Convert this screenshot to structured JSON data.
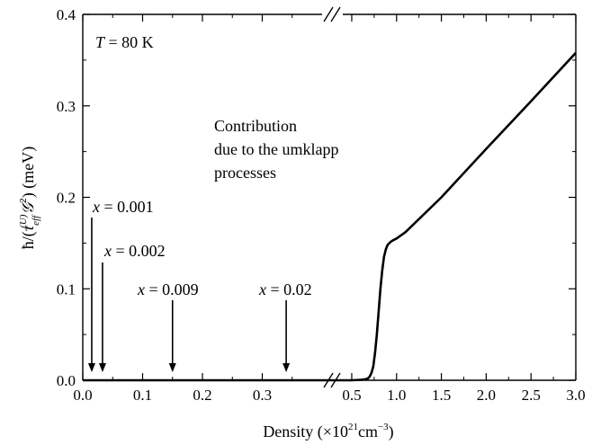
{
  "chart_data": {
    "type": "line",
    "xlabel": "Density (×10",
    "xlabel_exp": "21",
    "xlabel_unit": "cm",
    "xlabel_unit_exp": "−3",
    "xlabel_close": ")",
    "ylabel_prefix": "ħ/(",
    "ylabel_tau": "τ",
    "ylabel_tau_sub": "eff",
    "ylabel_tau_sup": "(U)",
    "ylabel_G": "𝒢",
    "ylabel_G_sup": "2",
    "ylabel_suffix": ") (meV)",
    "ylim": [
      0,
      0.4
    ],
    "x_broken_axis": {
      "segment1": [
        0,
        0.4
      ],
      "segment2": [
        0.4,
        3.0
      ]
    },
    "x_ticks": [
      {
        "value": 0.0,
        "label": "0.0",
        "segment": 1
      },
      {
        "value": 0.1,
        "label": "0.1",
        "segment": 1
      },
      {
        "value": 0.2,
        "label": "0.2",
        "segment": 1
      },
      {
        "value": 0.3,
        "label": "0.3",
        "segment": 1
      },
      {
        "value": 0.5,
        "label": "0.5",
        "segment": 2
      },
      {
        "value": 1.0,
        "label": "1.0",
        "segment": 2
      },
      {
        "value": 1.5,
        "label": "1.5",
        "segment": 2
      },
      {
        "value": 2.0,
        "label": "2.0",
        "segment": 2
      },
      {
        "value": 2.5,
        "label": "2.5",
        "segment": 2
      },
      {
        "value": 3.0,
        "label": "3.0",
        "segment": 2
      }
    ],
    "y_ticks": [
      {
        "value": 0.0,
        "label": "0.0"
      },
      {
        "value": 0.1,
        "label": "0.1"
      },
      {
        "value": 0.2,
        "label": "0.2"
      },
      {
        "value": 0.3,
        "label": "0.3"
      },
      {
        "value": 0.4,
        "label": "0.4"
      }
    ],
    "series": [
      {
        "x": [
          0.0,
          0.1,
          0.2,
          0.3,
          0.4,
          0.5,
          0.6,
          0.65,
          0.68,
          0.7,
          0.72,
          0.74,
          0.76,
          0.78,
          0.8,
          0.82,
          0.84,
          0.86,
          0.88,
          0.9,
          0.93,
          0.96,
          1.0,
          1.1,
          1.5,
          2.0,
          2.5,
          3.0
        ],
        "y": [
          0.0,
          0.0,
          0.0,
          0.0,
          0.0,
          0.0,
          0.0005,
          0.001,
          0.002,
          0.004,
          0.008,
          0.015,
          0.03,
          0.05,
          0.075,
          0.1,
          0.12,
          0.135,
          0.143,
          0.148,
          0.151,
          0.153,
          0.155,
          0.162,
          0.2,
          0.253,
          0.305,
          0.358
        ]
      }
    ],
    "annotations": {
      "temperature": {
        "symbol": "T",
        "value": " = 80 K"
      },
      "contribution_lines": [
        "Contribution",
        "due to the  umklapp",
        "processes"
      ],
      "arrows": [
        {
          "var": "x",
          "text": " = 0.001",
          "x": 0.015
        },
        {
          "var": "x",
          "text": " = 0.002",
          "x": 0.033
        },
        {
          "var": "x",
          "text": " = 0.009",
          "x": 0.15
        },
        {
          "var": "x",
          "text": " = 0.02",
          "x": 0.34
        }
      ]
    },
    "grid": false,
    "line_color": "#000000"
  }
}
